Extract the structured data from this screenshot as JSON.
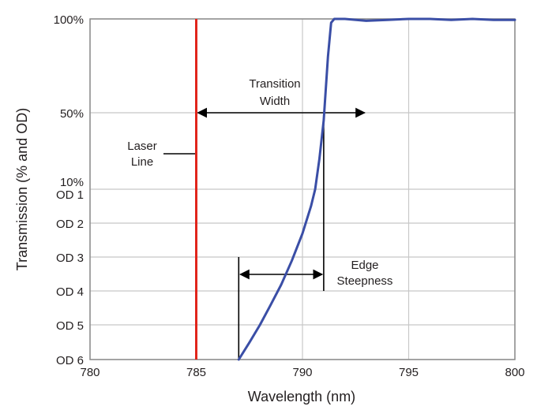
{
  "chart_data": {
    "type": "line",
    "xlabel": "Wavelength (nm)",
    "ylabel": "Transmission (% and OD)",
    "xlim": [
      780,
      800
    ],
    "x_ticks": [
      780,
      785,
      790,
      795,
      800
    ],
    "x_tick_labels": [
      "780",
      "785",
      "790",
      "795",
      "800"
    ],
    "y_tick_labels": [
      "100%",
      "50%",
      "10%",
      "OD 1",
      "OD 2",
      "OD 3",
      "OD 4",
      "OD 5",
      "OD 6"
    ],
    "grid": true,
    "series": [
      {
        "color": "#3a4ea6",
        "x": [
          787.0,
          787.5,
          788.0,
          788.5,
          789.0,
          789.5,
          790.0,
          790.4,
          790.6,
          790.8,
          791.0,
          791.2,
          791.35,
          791.5,
          792,
          793,
          794,
          795,
          796,
          797,
          798,
          799,
          800
        ],
        "y": [
          "OD 6",
          "OD 5.5",
          "OD 5",
          "OD 4.4",
          "OD 3.8",
          "OD 3.1",
          "OD 2.3",
          "OD 1.5",
          "OD 1",
          "20%",
          "45%",
          "80%",
          "98%",
          "100%",
          "100%",
          "99%",
          "99.5%",
          "100%",
          "100%",
          "99.5%",
          "100%",
          "99.5%",
          "99.5%"
        ]
      }
    ],
    "laser_line": {
      "x": 785,
      "color": "#e1251b"
    },
    "annotations": {
      "laser_line_label": [
        "Laser",
        "Line"
      ],
      "transition_width_label": [
        "Transition",
        "Width"
      ],
      "edge_steepness_label": [
        "Edge",
        "Steepness"
      ],
      "transition_width_from": 785,
      "transition_width_to": 793,
      "edge_steepness_from": 787,
      "edge_steepness_to": 791
    }
  }
}
